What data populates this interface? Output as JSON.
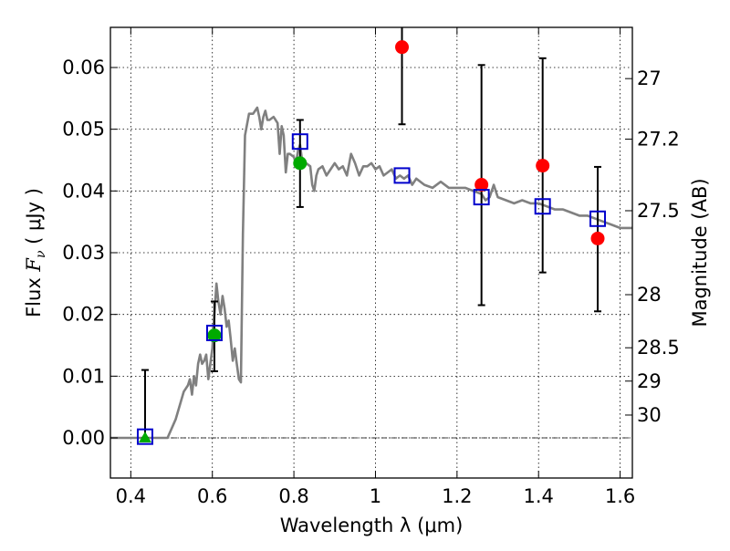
{
  "chart_data": {
    "type": "scatter",
    "xlabel": "Wavelength  λ (μm)",
    "ylabel": {
      "prefix": "Flux  ",
      "symbol": "F",
      "subscript": "ν",
      "suffix": "  ( μJy )"
    },
    "y2label": "Magnitude (AB)",
    "xlim": [
      0.35,
      1.63
    ],
    "ylim": [
      -0.0065,
      0.0665
    ],
    "xticks": [
      0.4,
      0.6,
      0.8,
      1.0,
      1.2,
      1.4,
      1.6
    ],
    "xtick_labels": [
      "0.4",
      "0.6",
      "0.8",
      "1",
      "1.2",
      "1.4",
      "1.6"
    ],
    "yticks": [
      0.0,
      0.01,
      0.02,
      0.03,
      0.04,
      0.05,
      0.06
    ],
    "ytick_labels": [
      "0.00",
      "0.01",
      "0.02",
      "0.03",
      "0.04",
      "0.05",
      "0.06"
    ],
    "y2ticks": [
      {
        "label": "27",
        "flux": 0.0582
      },
      {
        "label": "27.2",
        "flux": 0.0484
      },
      {
        "label": "27.5",
        "flux": 0.0368
      },
      {
        "label": "28",
        "flux": 0.0232
      },
      {
        "label": "28.5",
        "flux": 0.0146
      },
      {
        "label": "29",
        "flux": 0.0092
      },
      {
        "label": "30",
        "flux": 0.0037
      }
    ],
    "grid": true,
    "series": [
      {
        "kind": "line",
        "color": "#808080",
        "x": [
          0.35,
          0.45,
          0.49,
          0.51,
          0.53,
          0.54,
          0.545,
          0.55,
          0.555,
          0.56,
          0.565,
          0.57,
          0.575,
          0.58,
          0.585,
          0.59,
          0.595,
          0.6,
          0.605,
          0.61,
          0.615,
          0.62,
          0.625,
          0.63,
          0.635,
          0.64,
          0.645,
          0.65,
          0.655,
          0.66,
          0.665,
          0.67,
          0.675,
          0.68,
          0.69,
          0.7,
          0.705,
          0.71,
          0.715,
          0.72,
          0.725,
          0.73,
          0.735,
          0.74,
          0.75,
          0.76,
          0.765,
          0.77,
          0.775,
          0.78,
          0.785,
          0.79,
          0.8,
          0.805,
          0.81,
          0.815,
          0.82,
          0.83,
          0.84,
          0.845,
          0.85,
          0.855,
          0.86,
          0.87,
          0.88,
          0.89,
          0.9,
          0.91,
          0.92,
          0.93,
          0.94,
          0.95,
          0.96,
          0.97,
          0.98,
          0.99,
          1.0,
          1.01,
          1.02,
          1.03,
          1.04,
          1.05,
          1.06,
          1.07,
          1.08,
          1.09,
          1.1,
          1.12,
          1.14,
          1.16,
          1.18,
          1.2,
          1.22,
          1.24,
          1.26,
          1.27,
          1.28,
          1.29,
          1.3,
          1.32,
          1.34,
          1.36,
          1.38,
          1.4,
          1.42,
          1.44,
          1.46,
          1.48,
          1.5,
          1.52,
          1.54,
          1.56,
          1.58,
          1.6,
          1.63
        ],
        "y": [
          0.0,
          0.0,
          0.0,
          0.003,
          0.0075,
          0.0085,
          0.0095,
          0.007,
          0.01,
          0.0085,
          0.012,
          0.0135,
          0.012,
          0.0125,
          0.0135,
          0.0095,
          0.012,
          0.0145,
          0.02,
          0.025,
          0.022,
          0.02,
          0.023,
          0.021,
          0.018,
          0.019,
          0.016,
          0.0125,
          0.0145,
          0.012,
          0.0095,
          0.009,
          0.033,
          0.049,
          0.0525,
          0.0525,
          0.053,
          0.0535,
          0.052,
          0.05,
          0.052,
          0.053,
          0.0515,
          0.0515,
          0.052,
          0.051,
          0.046,
          0.0505,
          0.049,
          0.043,
          0.046,
          0.046,
          0.0455,
          0.0445,
          0.0465,
          0.0475,
          0.045,
          0.0445,
          0.044,
          0.041,
          0.04,
          0.0425,
          0.0435,
          0.044,
          0.0425,
          0.0435,
          0.0445,
          0.0435,
          0.044,
          0.0425,
          0.046,
          0.0445,
          0.0425,
          0.044,
          0.044,
          0.0445,
          0.0435,
          0.044,
          0.0425,
          0.043,
          0.0435,
          0.042,
          0.0425,
          0.042,
          0.0425,
          0.041,
          0.042,
          0.041,
          0.0405,
          0.0415,
          0.0405,
          0.0405,
          0.0405,
          0.04,
          0.0395,
          0.0385,
          0.039,
          0.041,
          0.039,
          0.0385,
          0.038,
          0.0385,
          0.038,
          0.038,
          0.0375,
          0.037,
          0.037,
          0.0365,
          0.036,
          0.036,
          0.0355,
          0.035,
          0.0345,
          0.034,
          0.034
        ]
      },
      {
        "kind": "points",
        "marker": "square",
        "color": "#0000cc",
        "x": [
          0.435,
          0.605,
          0.815,
          1.065,
          1.26,
          1.41,
          1.545
        ],
        "y": [
          0.0002,
          0.017,
          0.048,
          0.0425,
          0.039,
          0.0375,
          0.0355
        ]
      },
      {
        "kind": "points",
        "marker": "circle",
        "color": "#ff0000",
        "x": [
          1.065,
          1.26,
          1.41,
          1.545
        ],
        "y": [
          0.0633,
          0.041,
          0.0441,
          0.0323
        ],
        "yerr_low": [
          0.0508,
          0.0215,
          0.0268,
          0.0205
        ],
        "yerr_high": [
          0.0665,
          0.0604,
          0.0615,
          0.0439
        ]
      },
      {
        "kind": "points",
        "marker": "circle",
        "color": "#00aa00",
        "x": [
          0.605,
          0.815
        ],
        "y": [
          0.0166,
          0.0445
        ],
        "yerr_low": [
          0.0108,
          0.0374
        ],
        "yerr_high": [
          0.0221,
          0.0515
        ]
      },
      {
        "kind": "points",
        "marker": "triangle",
        "color": "#00aa00",
        "x": [
          0.435
        ],
        "y": [
          0.0
        ],
        "yerr_low": [
          0.0
        ],
        "yerr_high": [
          0.011
        ]
      }
    ]
  }
}
